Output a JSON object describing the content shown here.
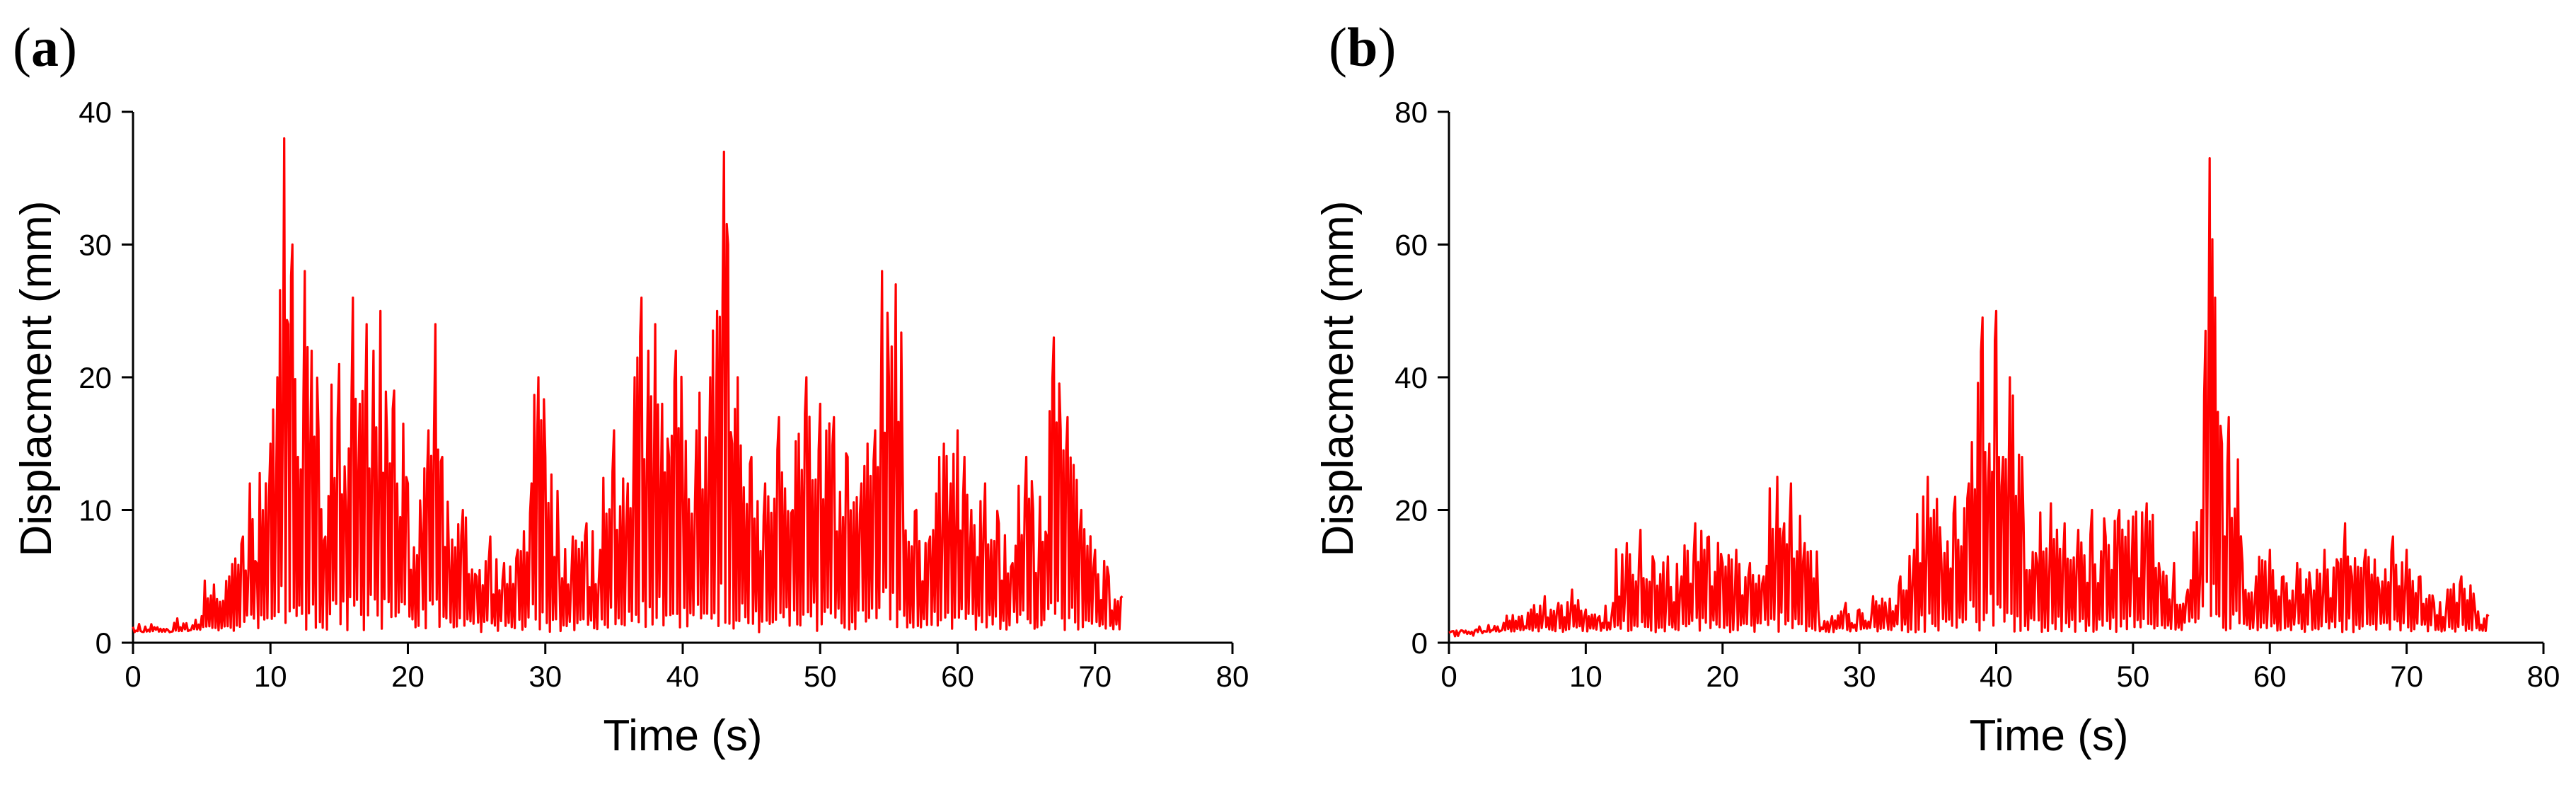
{
  "colors": {
    "series": "#ff0000",
    "axis": "#000000"
  },
  "chart_data": [
    {
      "type": "line",
      "panel_label": "a",
      "title": "",
      "xlabel": "Time (s)",
      "ylabel": "Displacment (mm)",
      "xlim": [
        0,
        80
      ],
      "ylim": [
        0,
        40
      ],
      "xticks": [
        0,
        10,
        20,
        30,
        40,
        50,
        60,
        70,
        80
      ],
      "yticks": [
        0,
        10,
        20,
        30,
        40
      ],
      "grid": false,
      "series": [
        {
          "name": "displacement",
          "x": [
            0,
            3,
            5,
            7,
            8,
            8.5,
            9,
            10,
            10.5,
            11,
            11.3,
            11.6,
            12,
            12.5,
            13,
            13.5,
            14,
            15,
            15.5,
            16,
            16.5,
            17,
            17.5,
            18,
            18.5,
            19,
            20,
            21,
            21.5,
            22,
            22.5,
            23,
            24,
            25,
            26,
            27,
            28,
            29,
            29.5,
            30,
            31,
            32,
            33,
            34,
            35,
            36,
            36.5,
            37,
            37.5,
            38,
            38.5,
            39,
            39.5,
            40,
            41,
            42,
            42.5,
            43,
            43.3,
            43.6,
            44,
            45,
            46,
            47,
            48,
            49,
            50,
            51,
            52,
            53,
            54,
            54.5,
            55,
            55.5,
            56,
            57,
            58,
            59,
            59.5,
            60,
            60.5,
            61,
            62,
            63,
            64,
            65,
            65.5,
            66,
            66.5,
            67,
            67.5,
            68,
            69,
            70,
            71,
            72
          ],
          "y": [
            1.2,
            1.5,
            2,
            5,
            8,
            12,
            6,
            15,
            20,
            38,
            24,
            30,
            14,
            28,
            22,
            16,
            8,
            21,
            10,
            26,
            18,
            24,
            22,
            25,
            15,
            19,
            12,
            8,
            16,
            24,
            14,
            6,
            10,
            5,
            8,
            6,
            7,
            12,
            20,
            14,
            6,
            8,
            9,
            7,
            16,
            12,
            20,
            26,
            22,
            24,
            18,
            14,
            22,
            12,
            16,
            20,
            25,
            37,
            30,
            15,
            20,
            14,
            12,
            17,
            10,
            20,
            18,
            17,
            14,
            12,
            16,
            28,
            20,
            27,
            13,
            10,
            8,
            15,
            12,
            16,
            14,
            10,
            12,
            9,
            6,
            14,
            10,
            11,
            8,
            23,
            16,
            17,
            10,
            7,
            5,
            3.5
          ]
        }
      ]
    },
    {
      "type": "line",
      "panel_label": "b",
      "title": "",
      "xlabel": "Time (s)",
      "ylabel": "Displacment (mm)",
      "xlim": [
        0,
        80
      ],
      "ylim": [
        0,
        80
      ],
      "xticks": [
        0,
        10,
        20,
        30,
        40,
        50,
        60,
        70,
        80
      ],
      "yticks": [
        0,
        20,
        40,
        60,
        80
      ],
      "grid": false,
      "series": [
        {
          "name": "displacement",
          "x": [
            0,
            2,
            4,
            6,
            7,
            8,
            9,
            10,
            11,
            12,
            13,
            14,
            15,
            16,
            17,
            18,
            19,
            20,
            21,
            22,
            23,
            24,
            24.5,
            25,
            26,
            27,
            28,
            29,
            30,
            31,
            32,
            33,
            34,
            35,
            36,
            37,
            38,
            39,
            39.5,
            40,
            40.5,
            41,
            42,
            43,
            44,
            45,
            46,
            47,
            48,
            49,
            50,
            51,
            52,
            53,
            54,
            55,
            55.3,
            55.6,
            56,
            56.5,
            57,
            58,
            59,
            60,
            61,
            62,
            63,
            64,
            65,
            65.5,
            66,
            67,
            68,
            69,
            70,
            71,
            72,
            73,
            74,
            75,
            76
          ],
          "y": [
            1.5,
            2,
            3,
            5,
            7,
            6,
            8,
            5,
            4,
            6,
            15,
            17,
            12,
            13,
            10,
            18,
            16,
            12,
            14,
            12,
            10,
            25,
            18,
            24,
            15,
            5,
            4,
            6,
            5,
            7,
            4,
            10,
            14,
            25,
            12,
            22,
            24,
            49,
            30,
            50,
            28,
            40,
            18,
            12,
            21,
            18,
            17,
            20,
            16,
            20,
            19,
            21,
            10,
            12,
            8,
            20,
            47,
            73,
            52,
            30,
            34,
            12,
            10,
            14,
            10,
            12,
            8,
            14,
            12,
            18,
            10,
            14,
            8,
            16,
            14,
            10,
            6,
            8,
            10,
            5,
            4
          ]
        }
      ]
    }
  ]
}
